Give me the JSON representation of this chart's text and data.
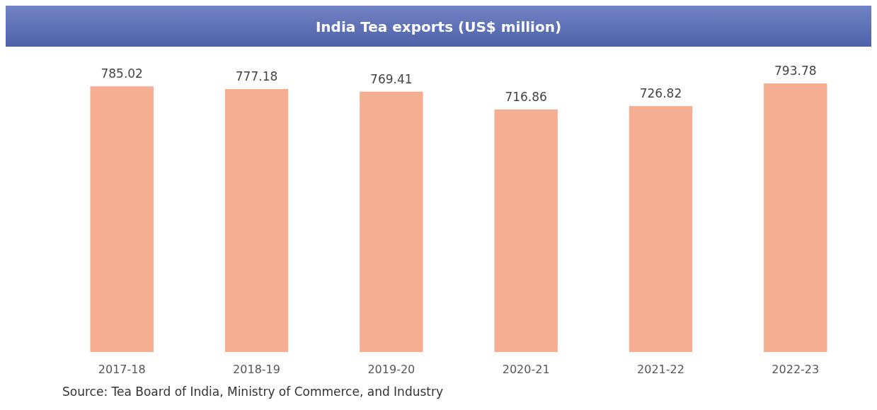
{
  "chart_data": {
    "type": "bar",
    "title": "India Tea exports (US$ million)",
    "categories": [
      "2017-18",
      "2018-19",
      "2019-20",
      "2020-21",
      "2021-22",
      "2022-23"
    ],
    "values": [
      785.02,
      777.18,
      769.41,
      716.86,
      726.82,
      793.78
    ],
    "color": "#f5ae92",
    "data_labels": true,
    "annotations": [
      "Source: Tea Board of India, Ministry of Commerce, and Industry"
    ]
  }
}
